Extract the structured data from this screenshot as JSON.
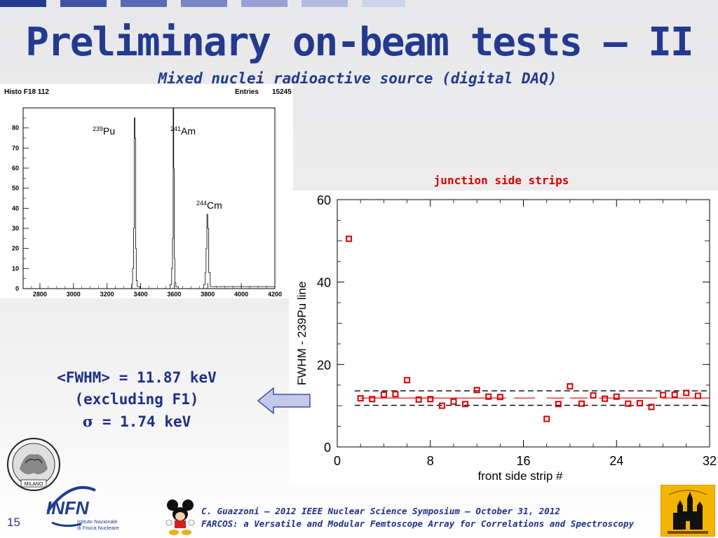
{
  "slide": {
    "title": "Preliminary on-beam tests – II",
    "subtitle": "Mixed nuclei radioactive source (digital DAQ)",
    "number": "15",
    "colors": {
      "title": "#233a8e",
      "accent_red": "#d90000"
    }
  },
  "histogram": {
    "header_left": "Histo F18 112",
    "header_entries_label": "Entries",
    "header_entries_value": "15245",
    "peaks": [
      {
        "mass": "239",
        "element": "Pu"
      },
      {
        "mass": "241",
        "element": "Am"
      },
      {
        "mass": "244",
        "element": "Cm"
      }
    ]
  },
  "fwhm_summary": {
    "line1": "<FWHM> = 11.87 keV",
    "line2": "(excluding F1)",
    "line3_symbol": "σ",
    "line3_rest": " = 1.74 keV"
  },
  "footer": {
    "line1": "C. Guazzoni – 2012 IEEE Nuclear Science Symposium – October 31, 2012",
    "line2": "FARCOS: a Versatile and Modular Femtoscope Array for Correlations and Spectroscopy",
    "logo_infn": "INFN",
    "logo_infn_sub1": "Istituto Nazionale",
    "logo_infn_sub2": "di Fisica Nucleare",
    "logo_polimi": "MILANO"
  },
  "chart_data": [
    {
      "type": "line",
      "title": "",
      "xlabel": "",
      "ylabel": "",
      "xlim": [
        2700,
        4200
      ],
      "ylim": [
        0,
        90
      ],
      "x_ticks": [
        2800,
        3000,
        3200,
        3400,
        3600,
        3800,
        4000,
        4200
      ],
      "y_ticks": [
        0,
        10,
        20,
        30,
        40,
        50,
        60,
        70,
        80
      ],
      "series": [
        {
          "x": [
            2700,
            3330,
            3345,
            3352,
            3358,
            3362,
            3366,
            3370,
            3374,
            3380,
            3395,
            3560,
            3575,
            3585,
            3590,
            3594,
            3597,
            3600,
            3604,
            3610,
            3625,
            3760,
            3775,
            3785,
            3790,
            3795,
            3800,
            3806,
            3815,
            4200
          ],
          "y": [
            0,
            0,
            2,
            10,
            30,
            85,
            75,
            20,
            4,
            1,
            0,
            0,
            2,
            10,
            25,
            90,
            60,
            15,
            3,
            1,
            0,
            0,
            2,
            8,
            20,
            37,
            30,
            8,
            1,
            0
          ]
        }
      ],
      "grid": false
    },
    {
      "type": "scatter",
      "title": "junction side strips",
      "xlabel": "front side strip #",
      "ylabel_prefix": "FWHM  - ",
      "ylabel_sup": "239",
      "ylabel_suffix": "Pu line",
      "xlim": [
        0,
        32
      ],
      "ylim": [
        0,
        60
      ],
      "x_ticks": [
        0,
        8,
        16,
        24,
        32
      ],
      "y_ticks": [
        0,
        20,
        40,
        60
      ],
      "dashed_lines": [
        13.6,
        10.1
      ],
      "mean_line": 11.87,
      "points": [
        [
          1,
          50.5
        ],
        [
          2,
          11.8
        ],
        [
          3,
          11.6
        ],
        [
          4,
          12.7
        ],
        [
          5,
          12.8
        ],
        [
          6,
          16.2
        ],
        [
          7,
          11.5
        ],
        [
          8,
          11.6
        ],
        [
          9,
          10.0
        ],
        [
          10,
          11.0
        ],
        [
          11,
          10.4
        ],
        [
          12,
          13.8
        ],
        [
          13,
          12.2
        ],
        [
          14,
          12.1
        ],
        [
          18,
          6.8
        ],
        [
          19,
          10.4
        ],
        [
          20,
          14.7
        ],
        [
          21,
          10.5
        ],
        [
          22,
          12.5
        ],
        [
          23,
          11.7
        ],
        [
          24,
          12.2
        ],
        [
          25,
          10.5
        ],
        [
          26,
          10.6
        ],
        [
          27,
          9.7
        ],
        [
          28,
          12.6
        ],
        [
          29,
          12.7
        ],
        [
          30,
          13.1
        ],
        [
          31,
          12.4
        ]
      ],
      "flat_segments": [
        [
          2,
          14.5,
          11.87
        ],
        [
          15.2,
          17,
          11.87
        ],
        [
          18,
          19.5,
          11.87
        ],
        [
          20,
          21.5,
          11.87
        ],
        [
          22.5,
          27.5,
          11.87
        ],
        [
          28,
          32,
          11.87
        ]
      ]
    }
  ]
}
